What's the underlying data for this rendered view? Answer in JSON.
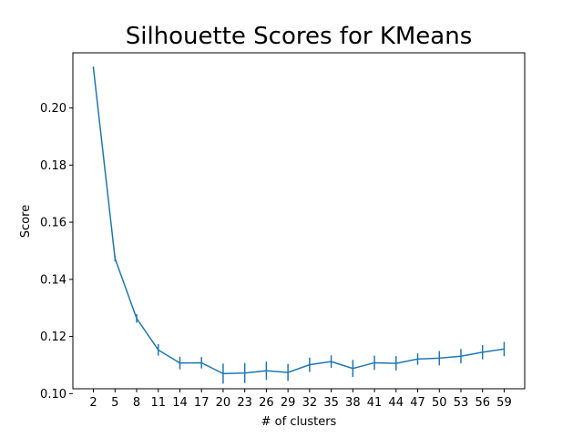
{
  "chart_data": {
    "type": "line",
    "title": "Silhouette Scores for KMeans",
    "xlabel": "# of clusters",
    "ylabel": "Score",
    "x": [
      2,
      5,
      8,
      11,
      14,
      17,
      20,
      23,
      26,
      29,
      32,
      35,
      38,
      41,
      44,
      47,
      50,
      53,
      56,
      59
    ],
    "y": [
      0.214,
      0.1473,
      0.1263,
      0.1153,
      0.1107,
      0.1108,
      0.107,
      0.1072,
      0.108,
      0.1074,
      0.1101,
      0.1112,
      0.1088,
      0.1108,
      0.1106,
      0.1121,
      0.1124,
      0.1131,
      0.1145,
      0.1156
    ],
    "yerr": [
      0.0005,
      0.001,
      0.0015,
      0.002,
      0.0022,
      0.002,
      0.0035,
      0.0035,
      0.0032,
      0.003,
      0.0025,
      0.0022,
      0.003,
      0.0025,
      0.0025,
      0.002,
      0.0025,
      0.0025,
      0.0025,
      0.0025
    ],
    "xticks": [
      2,
      5,
      8,
      11,
      14,
      17,
      20,
      23,
      26,
      29,
      32,
      35,
      38,
      41,
      44,
      47,
      50,
      53,
      56,
      59
    ],
    "yticks": [
      0.1,
      0.12,
      0.14,
      0.16,
      0.18,
      0.2
    ],
    "ytick_labels": [
      "0.10",
      "0.12",
      "0.14",
      "0.16",
      "0.18",
      "0.20"
    ],
    "xlim": [
      -0.85,
      61.85
    ],
    "ylim": [
      0.1017,
      0.2193
    ],
    "line_color": "#1f77b4",
    "grid": false,
    "legend": false
  }
}
